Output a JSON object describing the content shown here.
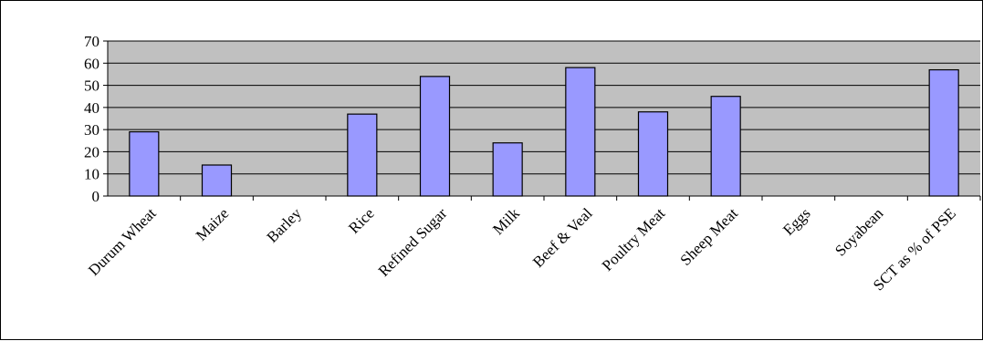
{
  "chart_data": {
    "type": "bar",
    "categories": [
      "Durum Wheat",
      "Maize",
      "Barley",
      "Rice",
      "Refined Sugar",
      "Milk",
      "Beef & Veal",
      "Poultry Meat",
      "Sheep Meat",
      "Eggs",
      "Soyabean",
      "SCT as % of PSE"
    ],
    "values": [
      29,
      14,
      0,
      37,
      54,
      24,
      58,
      38,
      45,
      0,
      0,
      57
    ],
    "y_ticks": [
      "0",
      "10",
      "20",
      "30",
      "40",
      "50",
      "60",
      "70"
    ],
    "ylim": [
      0,
      70
    ],
    "grid": true,
    "legend": "none",
    "colors": {
      "bar_fill": "#9999ff",
      "bar_stroke": "#000000",
      "plot_bg": "#c0c0c0",
      "gridline": "#000000"
    }
  }
}
